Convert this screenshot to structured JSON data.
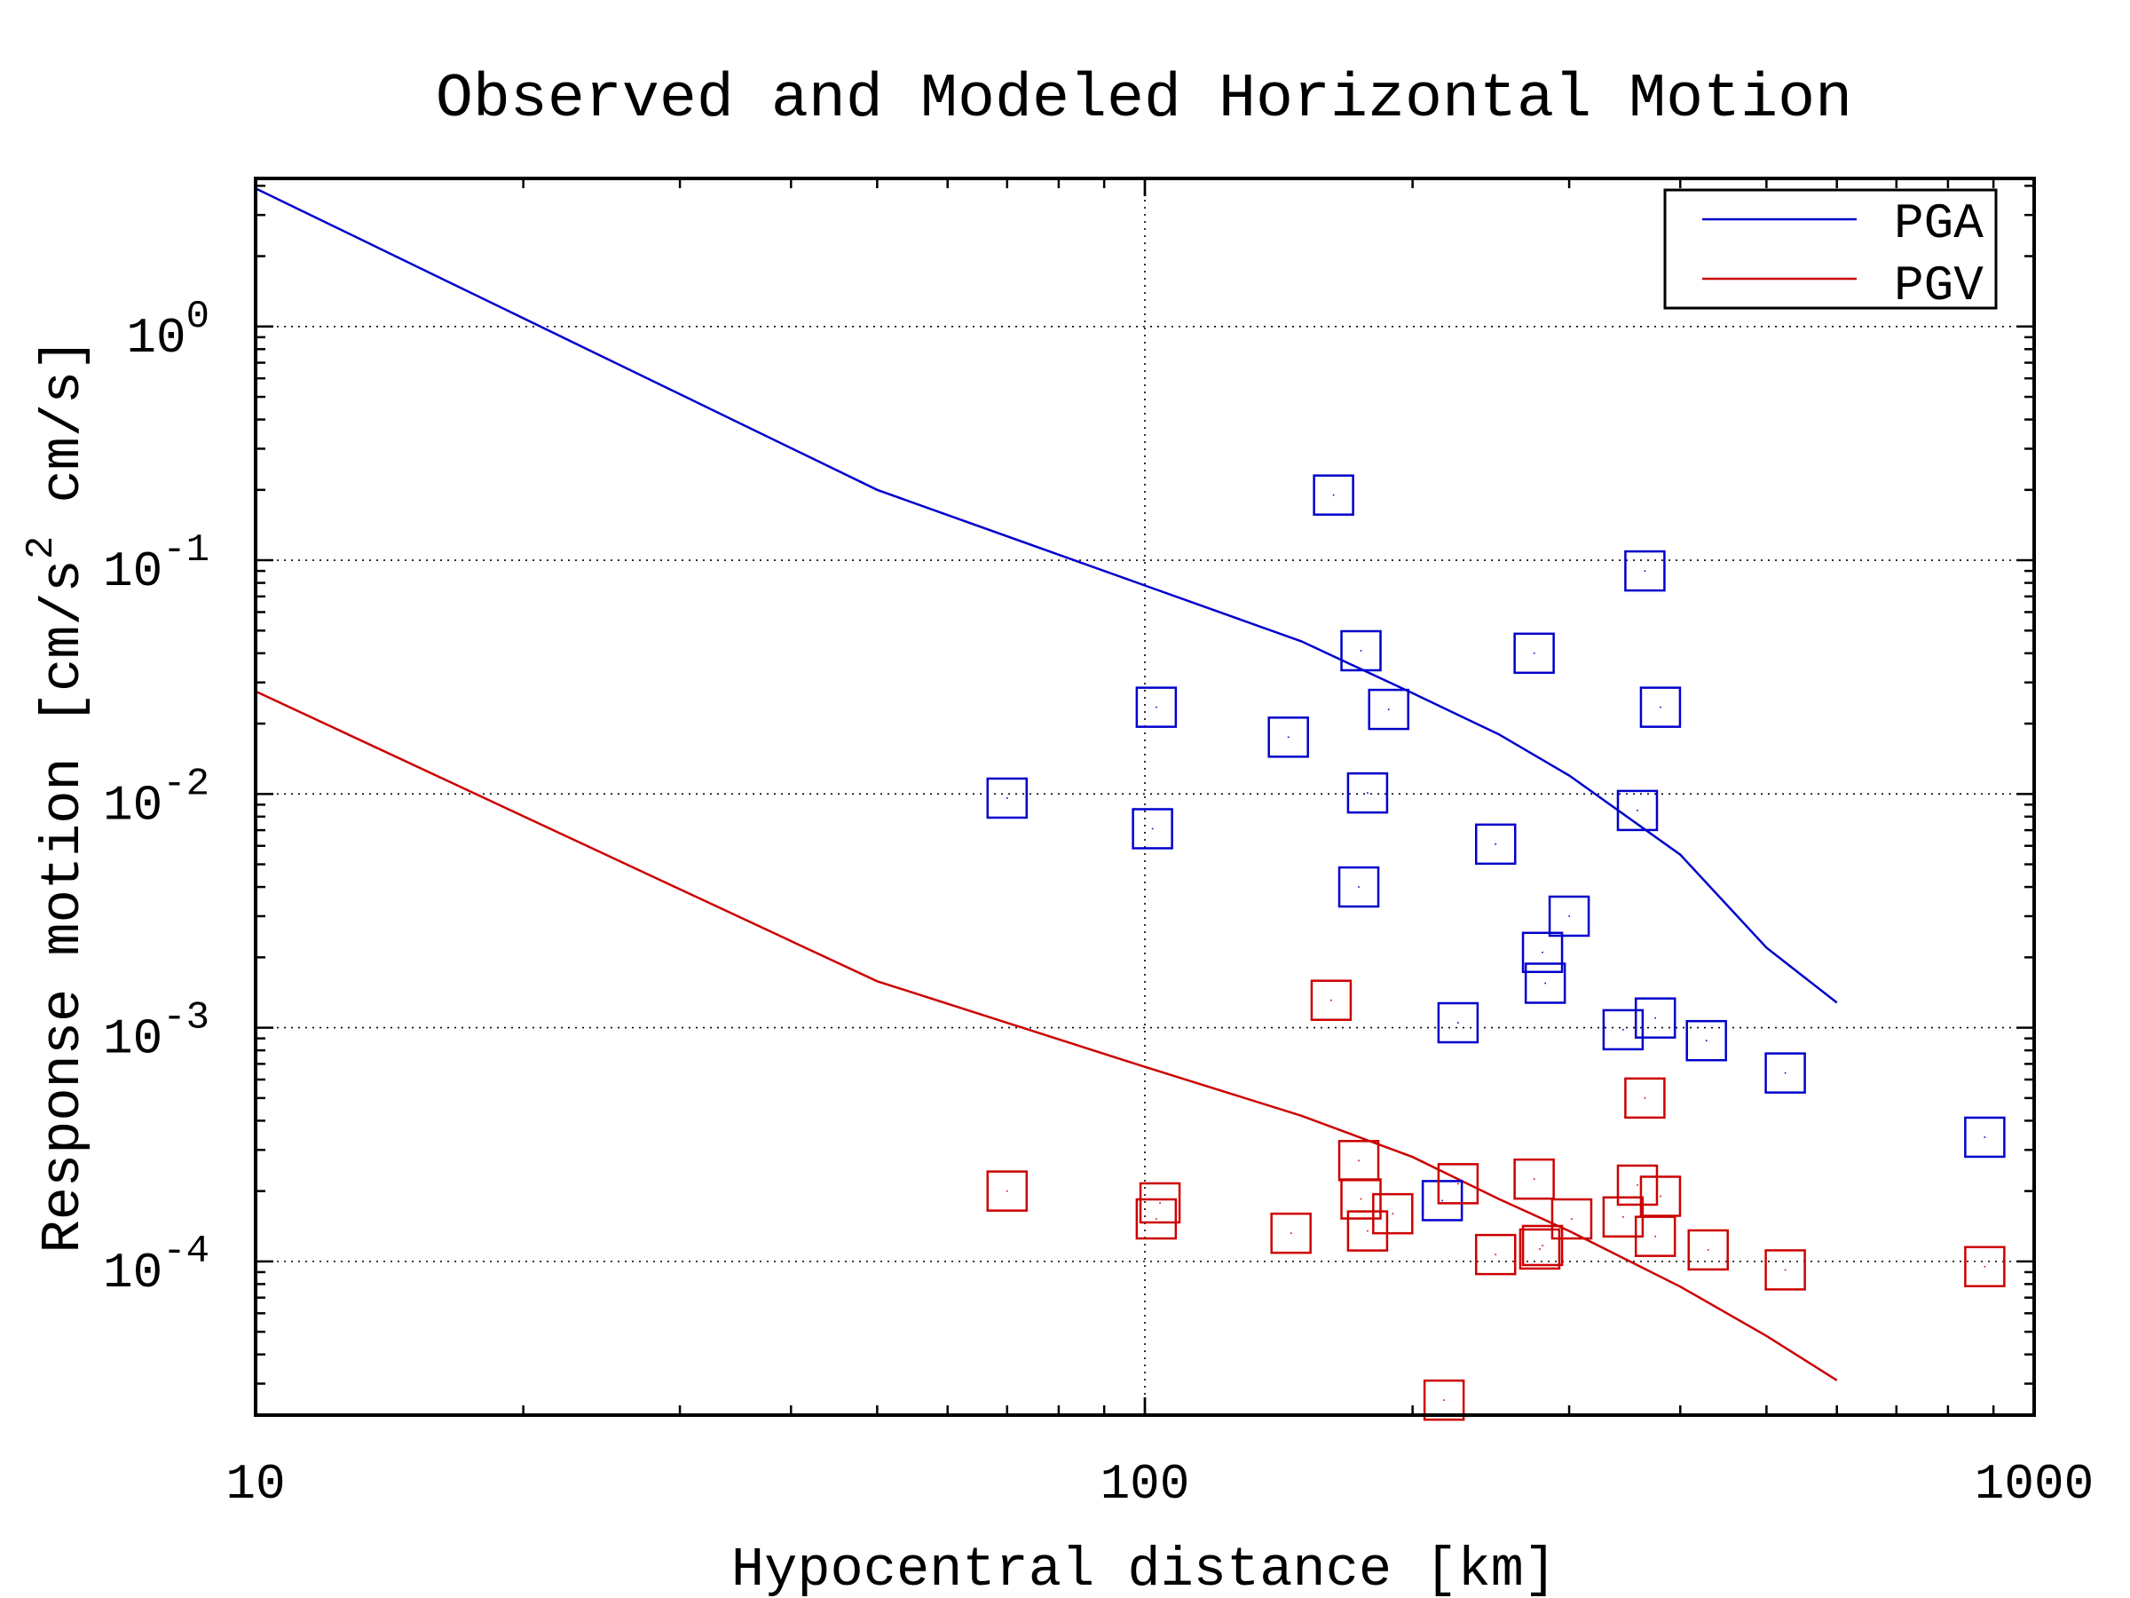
{
  "chart_data": {
    "type": "scatter",
    "title": "Observed and Modeled Horizontal Motion",
    "xlabel": "Hypocentral distance [km]",
    "ylabel": "Response motion  [cm/s2  cm/s]",
    "ylabel_parts": {
      "before": "Response motion  [cm/s",
      "superscript": "2",
      "after": "  cm/s]"
    },
    "x_scale": "log",
    "y_scale": "log",
    "xlim": [
      10,
      1000
    ],
    "ylim": [
      2.2e-05,
      4.3
    ],
    "x_ticks": [
      10,
      100,
      1000
    ],
    "x_tick_labels": [
      "10",
      "100",
      "1000"
    ],
    "y_ticks": [
      0.0001,
      0.001,
      0.01,
      0.1,
      1
    ],
    "y_tick_labels": [
      {
        "base": "10",
        "exp": "-4"
      },
      {
        "base": "10",
        "exp": "-3"
      },
      {
        "base": "10",
        "exp": "-2"
      },
      {
        "base": "10",
        "exp": "-1"
      },
      {
        "base": "10",
        "exp": "0"
      }
    ],
    "grid": true,
    "legend_position": "top-right",
    "series": [
      {
        "name": "PGA",
        "color": "#0000cc",
        "curve": [
          [
            10,
            3.9
          ],
          [
            50,
            0.2
          ],
          [
            100,
            0.078
          ],
          [
            150,
            0.045
          ],
          [
            200,
            0.027
          ],
          [
            250,
            0.018
          ],
          [
            300,
            0.012
          ],
          [
            400,
            0.0055
          ],
          [
            500,
            0.0022
          ],
          [
            600,
            0.00128
          ]
        ],
        "points": [
          [
            70,
            0.0096
          ],
          [
            103,
            0.0235
          ],
          [
            102,
            0.0071
          ],
          [
            145,
            0.0175
          ],
          [
            163,
            0.19
          ],
          [
            175,
            0.041
          ],
          [
            178,
            0.0101
          ],
          [
            174,
            0.004
          ],
          [
            188,
            0.023
          ],
          [
            225,
            0.00105
          ],
          [
            248,
            0.0061
          ],
          [
            274,
            0.04
          ],
          [
            280,
            0.0021
          ],
          [
            282,
            0.00155
          ],
          [
            300,
            0.003
          ],
          [
            345,
            0.00098
          ],
          [
            358,
            0.0085
          ],
          [
            365,
            0.09
          ],
          [
            375,
            0.0011
          ],
          [
            380,
            0.0235
          ],
          [
            428,
            0.00088
          ],
          [
            525,
            0.00064
          ],
          [
            216,
            0.000182
          ],
          [
            880,
            0.00034
          ]
        ]
      },
      {
        "name": "PGV",
        "color": "#cc0000",
        "curve": [
          [
            10,
            0.0275
          ],
          [
            50,
            0.00158
          ],
          [
            100,
            0.00068
          ],
          [
            150,
            0.00042
          ],
          [
            200,
            0.00028
          ],
          [
            250,
            0.000185
          ],
          [
            300,
            0.000135
          ],
          [
            400,
            7.8e-05
          ],
          [
            500,
            4.8e-05
          ],
          [
            600,
            3.1e-05
          ]
        ],
        "points": [
          [
            70,
            0.0002
          ],
          [
            104,
            0.000178
          ],
          [
            103,
            0.000152
          ],
          [
            146,
            0.000132
          ],
          [
            162,
            0.00131
          ],
          [
            174,
            0.00027
          ],
          [
            175,
            0.000185
          ],
          [
            178,
            0.000135
          ],
          [
            190,
            0.00016
          ],
          [
            225,
            0.000215
          ],
          [
            217,
            2.55e-05
          ],
          [
            248,
            0.000107
          ],
          [
            274,
            0.000225
          ],
          [
            280,
            0.000117
          ],
          [
            278,
            0.000113
          ],
          [
            302,
            0.000152
          ],
          [
            345,
            0.000155
          ],
          [
            358,
            0.000212
          ],
          [
            365,
            0.0005
          ],
          [
            375,
            0.000128
          ],
          [
            380,
            0.00019
          ],
          [
            430,
            0.000112
          ],
          [
            525,
            9.2e-05
          ],
          [
            880,
            9.5e-05
          ]
        ]
      }
    ]
  }
}
